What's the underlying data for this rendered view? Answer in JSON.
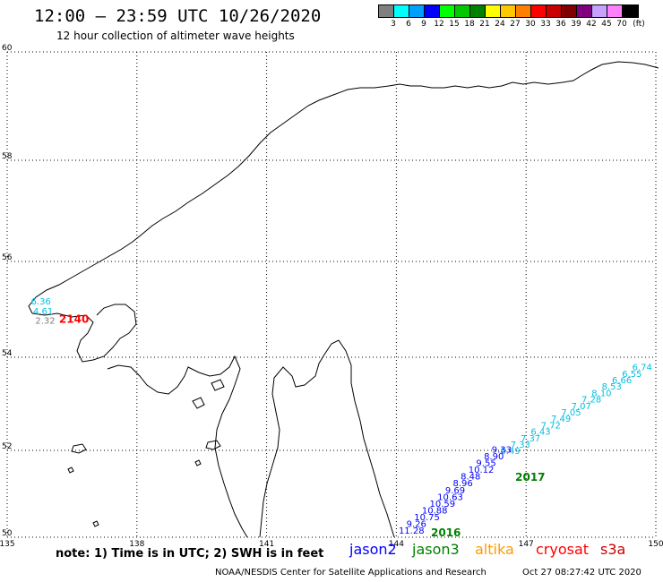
{
  "header": {
    "title": "12:00 – 23:59 UTC 10/26/2020",
    "subtitle": "12 hour collection of altimeter wave heights"
  },
  "scale": {
    "unit_label": "(ft)",
    "bins": [
      {
        "label": "3",
        "color": "#7f7f7f"
      },
      {
        "label": "6",
        "color": "#00ffff"
      },
      {
        "label": "9",
        "color": "#00a0ff"
      },
      {
        "label": "12",
        "color": "#0000ff"
      },
      {
        "label": "15",
        "color": "#00ff00"
      },
      {
        "label": "18",
        "color": "#00c800"
      },
      {
        "label": "21",
        "color": "#008000"
      },
      {
        "label": "24",
        "color": "#ffff00"
      },
      {
        "label": "27",
        "color": "#ffc800"
      },
      {
        "label": "30",
        "color": "#ff8000"
      },
      {
        "label": "33",
        "color": "#ff0000"
      },
      {
        "label": "36",
        "color": "#c80000"
      },
      {
        "label": "39",
        "color": "#800000"
      },
      {
        "label": "42",
        "color": "#800080"
      },
      {
        "label": "45",
        "color": "#c8a0ff"
      },
      {
        "label": "70",
        "color": "#ff80ff"
      },
      {
        "label": "",
        "color": "#000000"
      }
    ]
  },
  "map": {
    "lon_ticks": [
      "135",
      "138",
      "141",
      "144",
      "147",
      "150"
    ],
    "lat_ticks": [
      "50",
      "52",
      "54",
      "56",
      "58",
      "60"
    ],
    "lon_range": [
      135,
      150
    ],
    "lat_range": [
      50,
      60
    ],
    "grid": true
  },
  "annotations": {
    "pass_labels": [
      {
        "text": "2140",
        "color": "#ff0000",
        "lon": 136.2,
        "lat": 54.72
      },
      {
        "text": "2017",
        "color": "#008000",
        "lon": 146.75,
        "lat": 51.3
      },
      {
        "text": "2016",
        "color": "#008000",
        "lon": 144.8,
        "lat": 50.02
      }
    ],
    "coastal_values": [
      {
        "text": "6.36",
        "color": "#00c0e0",
        "lon": 135.55,
        "lat": 55.1
      },
      {
        "text": "4.61",
        "color": "#00c0e0",
        "lon": 135.6,
        "lat": 54.9
      },
      {
        "text": "2.32",
        "color": "#7f7f7f",
        "lon": 135.65,
        "lat": 54.7
      }
    ]
  },
  "tracks": [
    {
      "satellite": "jason2",
      "color": "#00c0e0",
      "values": [
        "6.74",
        "6.55",
        "6.66",
        "8.53",
        "8.10",
        "7.28",
        "7.07",
        "7.05",
        "7.49",
        "7.72",
        "6.43",
        "7.37",
        "7.33",
        "6.49"
      ]
    },
    {
      "satellite": "jason2",
      "color": "#0000ff",
      "values": [
        "9.33",
        "8.90",
        "9.55",
        "10.12",
        "8.48",
        "8.96",
        "9.69",
        "10.63",
        "10.59",
        "10.88",
        "10.75",
        "9.26",
        "11.28"
      ]
    }
  ],
  "footer": {
    "note": "note: 1) Time is in UTC; 2) SWH is in feet",
    "satellites": [
      {
        "name": "jason2",
        "color": "#0000ff"
      },
      {
        "name": "jason3",
        "color": "#008000"
      },
      {
        "name": "altika",
        "color": "#ff9a00"
      },
      {
        "name": "cryosat",
        "color": "#ff0000"
      },
      {
        "name": "s3a",
        "color": "#c80000"
      }
    ],
    "credit": "NOAA/NESDIS Center for Satellite Applications and Research",
    "timestamp": "Oct 27 08:27:42 UTC 2020"
  }
}
